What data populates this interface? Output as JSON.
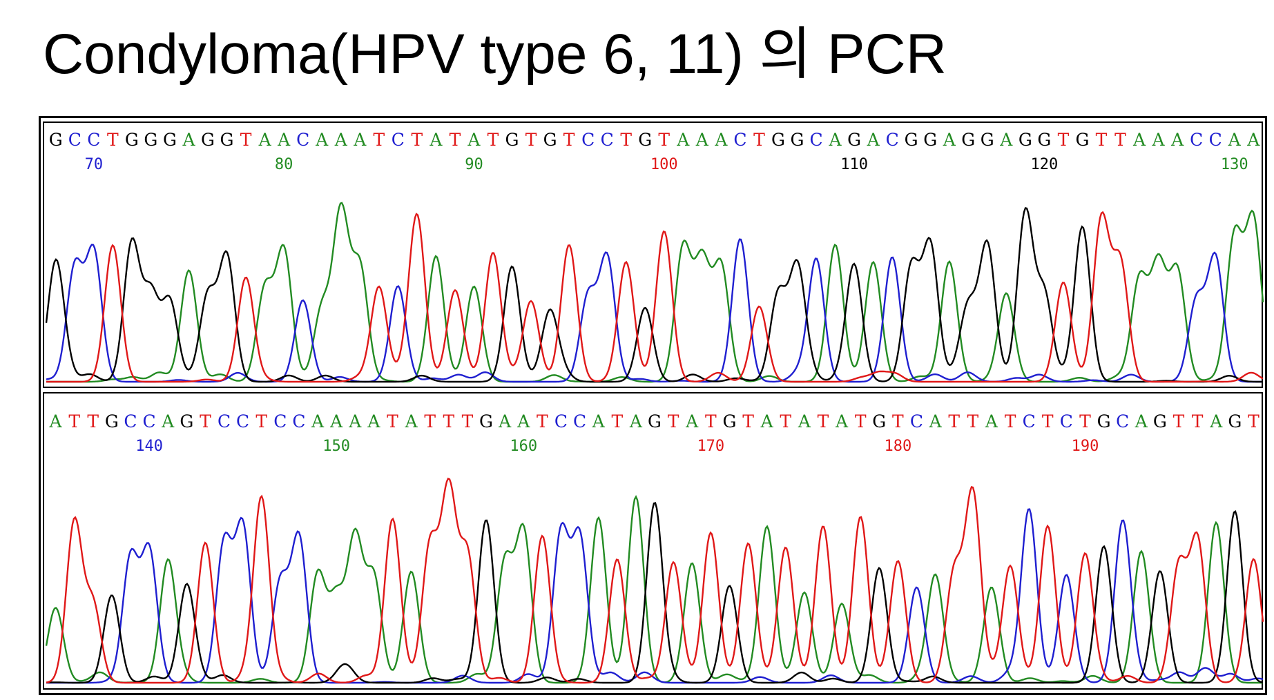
{
  "title": "Condyloma(HPV type 6, 11) 의 PCR",
  "colors": {
    "A": "#228B22",
    "C": "#1f1fd0",
    "G": "#000000",
    "T": "#e01818"
  },
  "chart_data": [
    {
      "type": "line",
      "panel": "top",
      "sequence": "GCCTGGGAGGTAACAAATCTATATGTGTCCTGTAAACTGGCAGACGGAGGAGGTGTTAAACCAA",
      "position_labels": [
        "70",
        "80",
        "90",
        "100",
        "110",
        "120",
        "130"
      ],
      "series": [
        {
          "name": "A",
          "color": "green"
        },
        {
          "name": "C",
          "color": "blue"
        },
        {
          "name": "G",
          "color": "black"
        },
        {
          "name": "T",
          "color": "red"
        }
      ]
    },
    {
      "type": "line",
      "panel": "bottom",
      "sequence": "ATTGCCAGTCCTCCAAAATATTTGAATCCATAGTATGTATATATGTCATTATCTCTGCAGTTAGT",
      "position_labels": [
        "140",
        "150",
        "160",
        "170",
        "180",
        "190"
      ],
      "series": [
        {
          "name": "A",
          "color": "green"
        },
        {
          "name": "C",
          "color": "blue"
        },
        {
          "name": "G",
          "color": "black"
        },
        {
          "name": "T",
          "color": "red"
        }
      ]
    }
  ]
}
